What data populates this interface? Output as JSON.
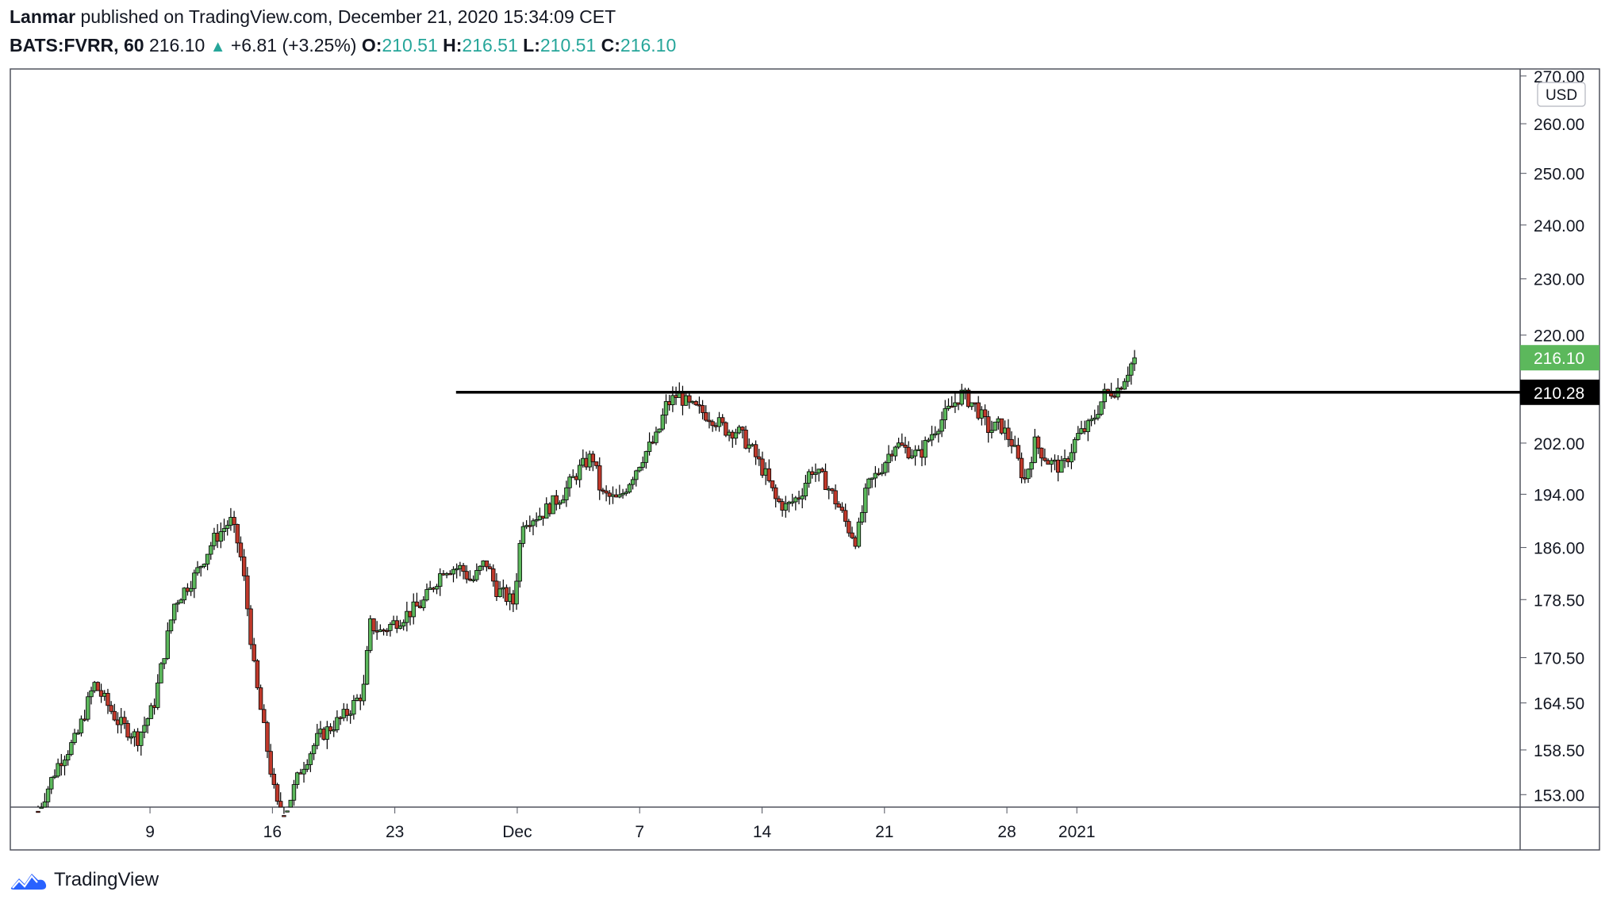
{
  "header": {
    "author": "Lanmar",
    "published_text": "published on TradingView.com, December 21, 2020 15:34:09 CET",
    "symbol": "BATS:FVRR, 60",
    "last": "216.10",
    "change": "+6.81 (+3.25%)",
    "open_label": "O:",
    "open": "210.51",
    "high_label": "H:",
    "high": "216.51",
    "low_label": "L:",
    "low": "210.51",
    "close_label": "C:",
    "close": "216.10"
  },
  "brand": {
    "name": "TradingView"
  },
  "colors": {
    "up": "#26a69a",
    "candle_up": "#5cb85c",
    "candle_down": "#c0392b",
    "line": "#000000"
  },
  "chart_data": {
    "type": "candlestick",
    "currency": "USD",
    "y_scale": "log",
    "ylim": [
      151.5,
      271.5
    ],
    "y_ticks": [
      270,
      260,
      250,
      240,
      230,
      220,
      202,
      194,
      186,
      178.5,
      170.5,
      164.5,
      158.5,
      153
    ],
    "y_tick_labels": [
      "270.00",
      "260.00",
      "250.00",
      "240.00",
      "230.00",
      "220.00",
      "202.00",
      "194.00",
      "186.00",
      "178.50",
      "170.50",
      "164.50",
      "158.50",
      "153.00"
    ],
    "x_ticks": [
      {
        "label": "9",
        "day": 9
      },
      {
        "label": "16",
        "day": 16
      },
      {
        "label": "23",
        "day": 23
      },
      {
        "label": "Dec",
        "day": 30
      },
      {
        "label": "7",
        "day": 37
      },
      {
        "label": "14",
        "day": 44
      },
      {
        "label": "21",
        "day": 51
      },
      {
        "label": "28",
        "day": 58
      },
      {
        "label": "2021",
        "day": 62
      }
    ],
    "x_day_range": [
      2.6,
      65.3
    ],
    "horizontal_line": {
      "price": 210.28,
      "label": "210.28",
      "from_day": 26.5
    },
    "last_price": {
      "price": 216.1,
      "label": "216.10"
    },
    "path": [
      [
        2.6,
        151
      ],
      [
        3.8,
        157
      ],
      [
        4.8,
        160
      ],
      [
        5.8,
        167
      ],
      [
        7.2,
        162
      ],
      [
        8.3,
        160
      ],
      [
        9.2,
        164
      ],
      [
        10.4,
        178
      ],
      [
        11.6,
        182
      ],
      [
        12.6,
        187
      ],
      [
        13.6,
        190
      ],
      [
        14.1,
        186
      ],
      [
        14.4,
        181
      ],
      [
        15.0,
        168
      ],
      [
        15.6,
        160
      ],
      [
        16.2,
        152
      ],
      [
        16.6,
        150
      ],
      [
        17.6,
        156
      ],
      [
        18.6,
        160
      ],
      [
        20.2,
        163
      ],
      [
        21.2,
        166
      ],
      [
        21.6,
        175
      ],
      [
        22.2,
        174
      ],
      [
        23.4,
        176
      ],
      [
        24.6,
        178
      ],
      [
        25.8,
        183
      ],
      [
        26.8,
        183
      ],
      [
        27.4,
        181
      ],
      [
        28.2,
        184
      ],
      [
        28.8,
        180
      ],
      [
        29.8,
        178
      ],
      [
        30.3,
        190
      ],
      [
        31.4,
        191
      ],
      [
        32.6,
        194
      ],
      [
        33.6,
        198
      ],
      [
        34.3,
        200
      ],
      [
        34.8,
        194
      ],
      [
        35.8,
        193
      ],
      [
        36.4,
        196
      ],
      [
        37.2,
        200
      ],
      [
        38.0,
        203
      ],
      [
        38.5,
        208
      ],
      [
        39.2,
        210
      ],
      [
        39.8,
        208
      ],
      [
        40.6,
        207
      ],
      [
        41.2,
        206
      ],
      [
        42.0,
        204
      ],
      [
        42.6,
        204
      ],
      [
        43.4,
        201
      ],
      [
        44.2,
        197
      ],
      [
        44.8,
        193
      ],
      [
        45.4,
        192
      ],
      [
        46.2,
        194
      ],
      [
        46.8,
        198
      ],
      [
        47.6,
        196
      ],
      [
        48.4,
        192
      ],
      [
        48.9,
        189
      ],
      [
        49.4,
        187
      ],
      [
        50.0,
        195
      ],
      [
        50.8,
        198
      ],
      [
        51.6,
        202
      ],
      [
        52.2,
        201
      ],
      [
        53.0,
        200
      ],
      [
        53.8,
        204
      ],
      [
        54.6,
        207
      ],
      [
        55.4,
        210
      ],
      [
        56.2,
        208
      ],
      [
        57.0,
        204
      ],
      [
        57.6,
        205
      ],
      [
        58.3,
        202
      ],
      [
        59.0,
        196
      ],
      [
        59.6,
        202
      ],
      [
        60.4,
        199
      ],
      [
        61.2,
        198
      ],
      [
        62.0,
        203
      ],
      [
        62.8,
        205
      ],
      [
        63.6,
        210
      ],
      [
        64.4,
        211
      ],
      [
        65.3,
        216.1
      ]
    ]
  }
}
